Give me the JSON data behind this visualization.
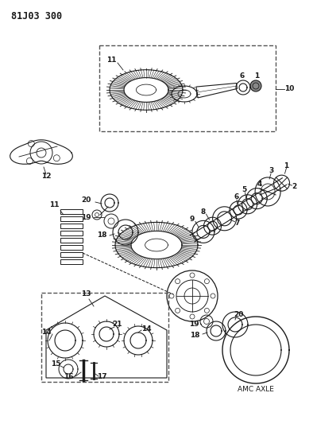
{
  "title": "81J03 300",
  "background_color": "#ffffff",
  "line_color": "#1a1a1a",
  "text_color": "#1a1a1a",
  "figsize": [
    3.94,
    5.33
  ],
  "dpi": 100,
  "amc_axle_label": "AMC AXLE"
}
